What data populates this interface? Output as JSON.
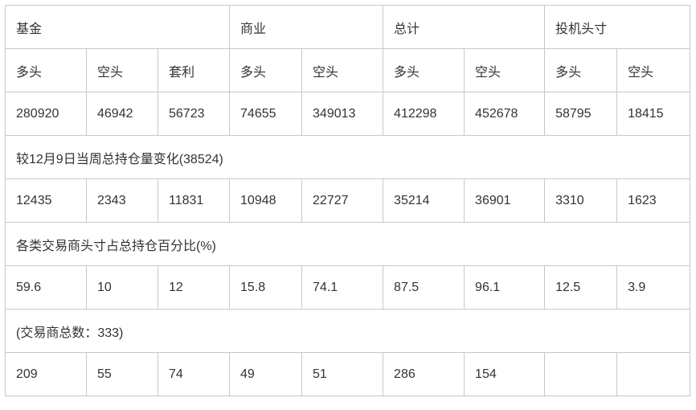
{
  "table": {
    "rows": [
      [
        {
          "text": "基金",
          "colspan": 3
        },
        {
          "text": "商业",
          "colspan": 2
        },
        {
          "text": "总计",
          "colspan": 2
        },
        {
          "text": "投机头寸",
          "colspan": 2
        }
      ],
      [
        {
          "text": "多头"
        },
        {
          "text": "空头"
        },
        {
          "text": "套利"
        },
        {
          "text": "多头"
        },
        {
          "text": "空头"
        },
        {
          "text": "多头"
        },
        {
          "text": "空头"
        },
        {
          "text": "多头"
        },
        {
          "text": "空头"
        }
      ],
      [
        {
          "text": "280920"
        },
        {
          "text": "46942"
        },
        {
          "text": "56723"
        },
        {
          "text": "74655"
        },
        {
          "text": "349013"
        },
        {
          "text": "412298"
        },
        {
          "text": "452678"
        },
        {
          "text": "58795"
        },
        {
          "text": "18415"
        }
      ],
      [
        {
          "text": "较12月9日当周总持仓量变化(38524)",
          "colspan": 9
        }
      ],
      [
        {
          "text": "12435"
        },
        {
          "text": "2343"
        },
        {
          "text": "11831"
        },
        {
          "text": "10948"
        },
        {
          "text": "22727"
        },
        {
          "text": "35214"
        },
        {
          "text": "36901"
        },
        {
          "text": "3310"
        },
        {
          "text": "1623"
        }
      ],
      [
        {
          "text": "各类交易商头寸占总持仓百分比(%)",
          "colspan": 9
        }
      ],
      [
        {
          "text": "59.6"
        },
        {
          "text": "10"
        },
        {
          "text": "12"
        },
        {
          "text": "15.8"
        },
        {
          "text": "74.1"
        },
        {
          "text": "87.5"
        },
        {
          "text": "96.1"
        },
        {
          "text": "12.5"
        },
        {
          "text": "3.9"
        }
      ],
      [
        {
          "text": "(交易商总数：333)",
          "colspan": 9
        }
      ],
      [
        {
          "text": "209"
        },
        {
          "text": "55"
        },
        {
          "text": "74"
        },
        {
          "text": "49"
        },
        {
          "text": "51"
        },
        {
          "text": "286"
        },
        {
          "text": "154"
        },
        {
          "text": ""
        },
        {
          "text": ""
        }
      ]
    ]
  }
}
